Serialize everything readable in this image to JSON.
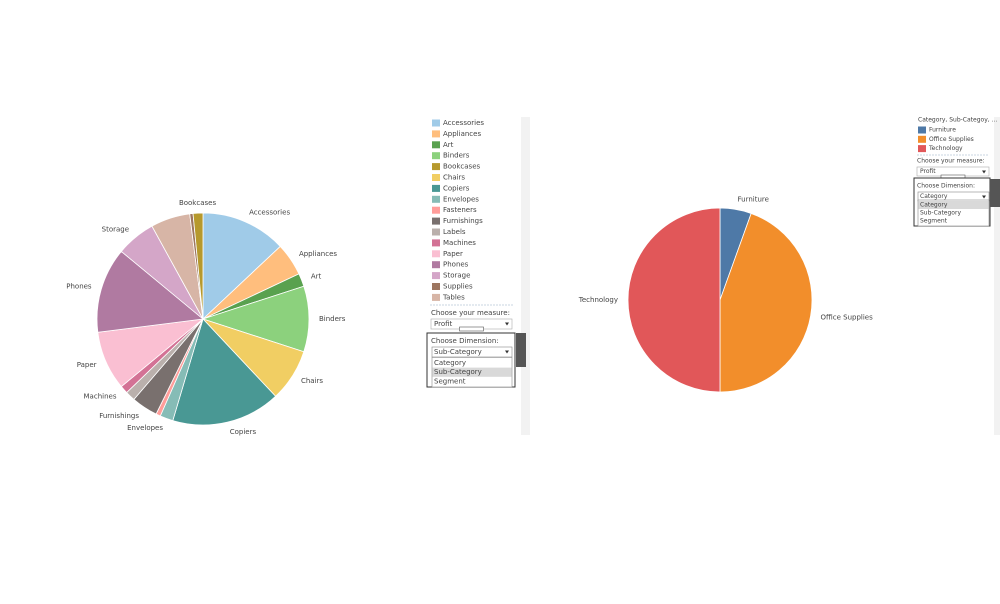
{
  "chart_data": [
    {
      "type": "pie",
      "categories": [
        "Accessories",
        "Appliances",
        "Art",
        "Binders",
        "Chairs",
        "Copiers",
        "Envelopes",
        "Fasteners",
        "Furnishings",
        "Labels",
        "Machines",
        "Paper",
        "Phones",
        "Storage",
        "Tables",
        "Supplies",
        "Bookcases"
      ],
      "values": [
        13,
        5,
        2,
        10,
        8,
        16.6,
        2,
        0.7,
        4,
        1.5,
        1.2,
        9,
        13,
        6,
        6,
        0.5,
        1.5
      ],
      "colors": [
        "#a0cbe8",
        "#ffbe7d",
        "#59a14f",
        "#8cd17d",
        "#f1ce63",
        "#499894",
        "#86bcb6",
        "#ff9d9a",
        "#79706e",
        "#bab0ac",
        "#d37295",
        "#fabfd2",
        "#b07aa1",
        "#d4a6c8",
        "#d7b5a6",
        "#9d7660",
        "#b6992d"
      ],
      "labeled": [
        true,
        true,
        true,
        true,
        true,
        true,
        true,
        false,
        true,
        false,
        true,
        true,
        true,
        true,
        false,
        false,
        true
      ]
    },
    {
      "type": "pie",
      "legend_title": "Category, Sub-Categoy, ...",
      "categories": [
        "Furniture",
        "Office Supplies",
        "Technology"
      ],
      "values": [
        5.5,
        44.5,
        50
      ],
      "colors": [
        "#4e79a7",
        "#f28e2b",
        "#e15759"
      ],
      "labeled": [
        true,
        true,
        true
      ]
    }
  ],
  "controls": [
    {
      "measure_label": "Choose your measure:",
      "measure_value": "Profit",
      "dimension_label": "Choose Dimension:",
      "dimension_value": "Sub-Category",
      "options": [
        "Category",
        "Sub-Category",
        "Segment"
      ],
      "selected": 1
    },
    {
      "measure_label": "Choose your measure:",
      "measure_value": "Profit",
      "dimension_label": "Choose Dimension:",
      "dimension_value": "Category",
      "options": [
        "Category",
        "Sub-Category",
        "Segment"
      ],
      "selected": 0
    }
  ]
}
